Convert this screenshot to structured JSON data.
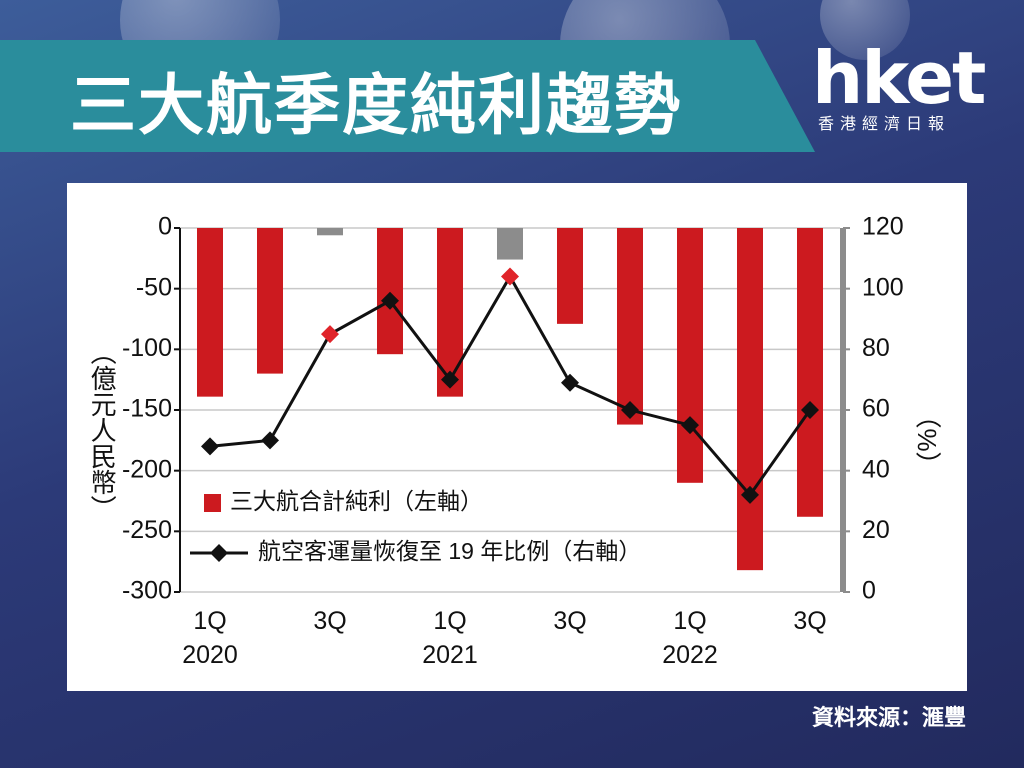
{
  "header": {
    "title": "三大航季度純利趨勢",
    "logo": "hket",
    "logo_sub": "香港經濟日報"
  },
  "chart_data": {
    "type": "combo",
    "categories": [
      "1Q 2020",
      null,
      "3Q",
      null,
      "1Q 2021",
      null,
      "3Q",
      null,
      "1Q 2022",
      null,
      "3Q"
    ],
    "y_label": "（億元人民幣）",
    "y2_label": "（%）",
    "ylim": [
      0,
      -300
    ],
    "yticks": [
      0,
      -50,
      -100,
      -150,
      -200,
      -250,
      -300
    ],
    "y2lim": [
      120,
      0
    ],
    "y2ticks": [
      120,
      100,
      80,
      60,
      40,
      20,
      0
    ],
    "grid": true,
    "series": [
      {
        "name": "三大航合計純利（左軸）",
        "type": "bar",
        "axis": "y",
        "color": "#cc1a1f",
        "colors": [
          "#cc1a1f",
          "#cc1a1f",
          "#8c8c8c",
          "#cc1a1f",
          "#cc1a1f",
          "#8c8c8c",
          "#cc1a1f",
          "#cc1a1f",
          "#cc1a1f",
          "#cc1a1f",
          "#cc1a1f"
        ],
        "values": [
          -139,
          -120,
          -6,
          -104,
          -139,
          -26,
          -79,
          -162,
          -210,
          -282,
          -238
        ]
      },
      {
        "name": "航空客運量恢復至 19 年比例（右軸）",
        "type": "line",
        "axis": "y2",
        "color": "#111111",
        "marker_colors": [
          "#111111",
          "#111111",
          "#e0242a",
          "#111111",
          "#111111",
          "#e0242a",
          "#111111",
          "#111111",
          "#111111",
          "#111111",
          "#111111"
        ],
        "values": [
          48,
          50,
          85,
          96,
          70,
          104,
          69,
          60,
          55,
          32,
          60
        ]
      }
    ]
  },
  "source": "資料來源：滙豐"
}
